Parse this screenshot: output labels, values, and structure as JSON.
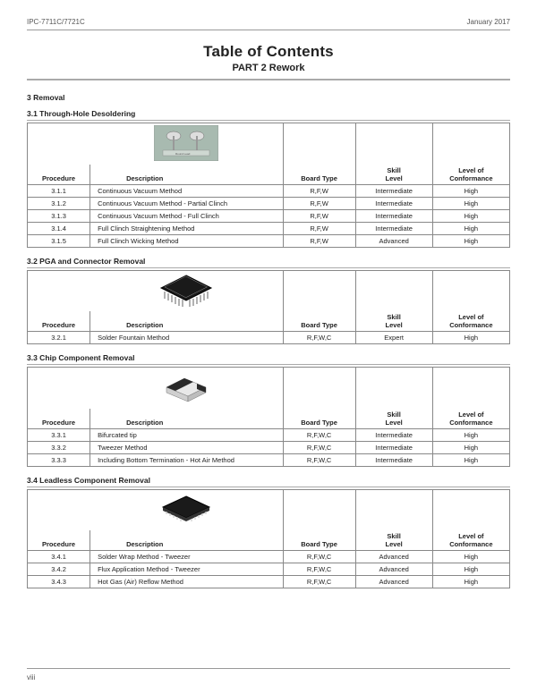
{
  "header": {
    "left": "IPC-7711C/7721C",
    "right": "January 2017"
  },
  "title": "Table of Contents",
  "subtitle": "PART 2   Rework",
  "section3": "3  Removal",
  "columns": {
    "procedure": "Procedure",
    "description": "Description",
    "board_type": "Board Type",
    "skill": "Skill Level",
    "conformance": "Level of Conformance"
  },
  "tables": [
    {
      "heading": "3.1  Through-Hole Desoldering",
      "icon": "through-hole",
      "rows": [
        {
          "proc": "3.1.1",
          "desc": "Continuous Vacuum Method",
          "bt": "R,F,W",
          "sk": "Intermediate",
          "cf": "High"
        },
        {
          "proc": "3.1.2",
          "desc": "Continuous Vacuum Method - Partial Clinch",
          "bt": "R,F,W",
          "sk": "Intermediate",
          "cf": "High"
        },
        {
          "proc": "3.1.3",
          "desc": "Continuous Vacuum Method - Full Clinch",
          "bt": "R,F,W",
          "sk": "Intermediate",
          "cf": "High"
        },
        {
          "proc": "3.1.4",
          "desc": "Full Clinch Straightening Method",
          "bt": "R,F,W",
          "sk": "Intermediate",
          "cf": "High"
        },
        {
          "proc": "3.1.5",
          "desc": "Full Clinch Wicking Method",
          "bt": "R,F,W",
          "sk": "Advanced",
          "cf": "High"
        }
      ]
    },
    {
      "heading": "3.2  PGA and Connector Removal",
      "icon": "pga",
      "rows": [
        {
          "proc": "3.2.1",
          "desc": "Solder Fountain Method",
          "bt": "R,F,W,C",
          "sk": "Expert",
          "cf": "High"
        }
      ]
    },
    {
      "heading": "3.3  Chip Component Removal",
      "icon": "chip",
      "rows": [
        {
          "proc": "3.3.1",
          "desc": "Bifurcated tip",
          "bt": "R,F,W,C",
          "sk": "Intermediate",
          "cf": "High"
        },
        {
          "proc": "3.3.2",
          "desc": "Tweezer Method",
          "bt": "R,F,W,C",
          "sk": "Intermediate",
          "cf": "High"
        },
        {
          "proc": "3.3.3",
          "desc": "Including Bottom Termination - Hot Air Method",
          "bt": "R,F,W,C",
          "sk": "Intermediate",
          "cf": "High"
        }
      ]
    },
    {
      "heading": "3.4  Leadless Component Removal",
      "icon": "leadless",
      "rows": [
        {
          "proc": "3.4.1",
          "desc": "Solder Wrap Method - Tweezer",
          "bt": "R,F,W,C",
          "sk": "Advanced",
          "cf": "High"
        },
        {
          "proc": "3.4.2",
          "desc": "Flux Application Method - Tweezer",
          "bt": "R,F,W,C",
          "sk": "Advanced",
          "cf": "High"
        },
        {
          "proc": "3.4.3",
          "desc": "Hot Gas (Air) Reflow Method",
          "bt": "R,F,W,C",
          "sk": "Advanced",
          "cf": "High"
        }
      ]
    }
  ],
  "page_num": "viii"
}
